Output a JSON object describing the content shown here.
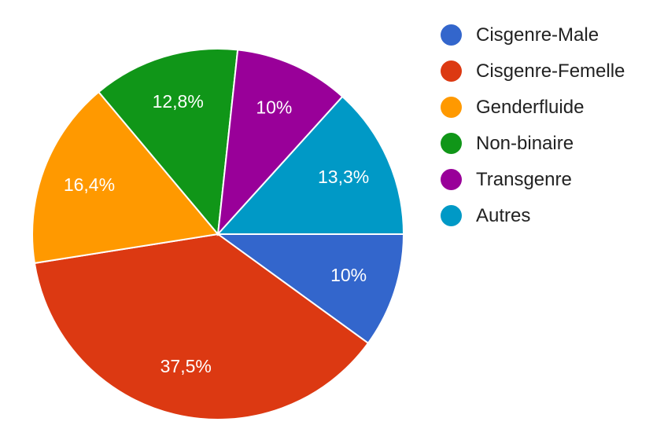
{
  "chart_data": {
    "type": "pie",
    "categories": [
      "Cisgenre-Male",
      "Cisgenre-Femelle",
      "Genderfluide",
      "Non-binaire",
      "Transgenre",
      "Autres"
    ],
    "values": [
      10,
      37.5,
      16.4,
      12.8,
      10,
      13.3
    ],
    "value_labels": [
      "10%",
      "37,5%",
      "16,4%",
      "12,8%",
      "10%",
      "13,3%"
    ],
    "colors": [
      "#3366cc",
      "#dc3912",
      "#ff9900",
      "#109618",
      "#990099",
      "#0099c6"
    ],
    "legend": "right"
  }
}
